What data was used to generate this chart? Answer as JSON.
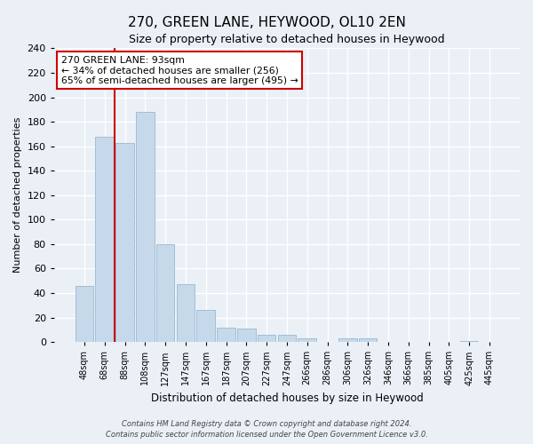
{
  "title": "270, GREEN LANE, HEYWOOD, OL10 2EN",
  "subtitle": "Size of property relative to detached houses in Heywood",
  "xlabel": "Distribution of detached houses by size in Heywood",
  "ylabel": "Number of detached properties",
  "bar_labels": [
    "48sqm",
    "68sqm",
    "88sqm",
    "108sqm",
    "127sqm",
    "147sqm",
    "167sqm",
    "187sqm",
    "207sqm",
    "227sqm",
    "247sqm",
    "266sqm",
    "286sqm",
    "306sqm",
    "326sqm",
    "346sqm",
    "366sqm",
    "385sqm",
    "405sqm",
    "425sqm",
    "445sqm"
  ],
  "bar_values": [
    46,
    168,
    163,
    188,
    80,
    47,
    26,
    12,
    11,
    6,
    6,
    3,
    0,
    3,
    3,
    0,
    0,
    0,
    0,
    1,
    0
  ],
  "bar_color": "#c6d9ea",
  "bar_edge_color": "#9ab8d0",
  "vline_x_index": 2,
  "vline_color": "#cc0000",
  "ylim": [
    0,
    240
  ],
  "yticks": [
    0,
    20,
    40,
    60,
    80,
    100,
    120,
    140,
    160,
    180,
    200,
    220,
    240
  ],
  "annotation_title": "270 GREEN LANE: 93sqm",
  "annotation_line1": "← 34% of detached houses are smaller (256)",
  "annotation_line2": "65% of semi-detached houses are larger (495) →",
  "annotation_box_color": "#ffffff",
  "annotation_box_edge": "#cc0000",
  "footnote1": "Contains HM Land Registry data © Crown copyright and database right 2024.",
  "footnote2": "Contains public sector information licensed under the Open Government Licence v3.0.",
  "background_color": "#eaf0f6",
  "grid_color": "#ffffff"
}
